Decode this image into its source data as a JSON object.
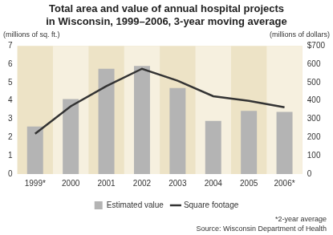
{
  "chart_data": {
    "type": "bar",
    "title": [
      "Total area and value of annual hospital projects",
      "in Wisconsin, 1999–2006, 3-year moving average"
    ],
    "categories": [
      "1999*",
      "2000",
      "2001",
      "2002",
      "2003",
      "2004",
      "2005",
      "2006*"
    ],
    "series": [
      {
        "name": "Estimated value",
        "type": "bar",
        "color": "#b4b4b4",
        "axis": "y2",
        "values": [
          260,
          410,
          575,
          590,
          470,
          290,
          345,
          340
        ]
      },
      {
        "name": "Square footage",
        "type": "line",
        "color": "#333333",
        "axis": "y",
        "marker": "none",
        "line_style": "solid",
        "values": [
          2.2,
          3.7,
          4.8,
          5.75,
          5.1,
          4.25,
          4.0,
          3.65
        ]
      }
    ],
    "y_label": "(millions of sq. ft.)",
    "y2_label": "(millions of dollars)",
    "ylim": [
      0,
      7
    ],
    "yticks": [
      0,
      1,
      2,
      3,
      4,
      5,
      6,
      7
    ],
    "y2lim": [
      0,
      700
    ],
    "y2ticks": [
      0,
      100,
      200,
      300,
      400,
      500,
      600,
      {
        "value": 700,
        "label": "$700"
      }
    ],
    "grid": false,
    "legend": "bottom",
    "annotations": [
      "*2-year average",
      "Source: Wisconsin Department of Health"
    ]
  }
}
